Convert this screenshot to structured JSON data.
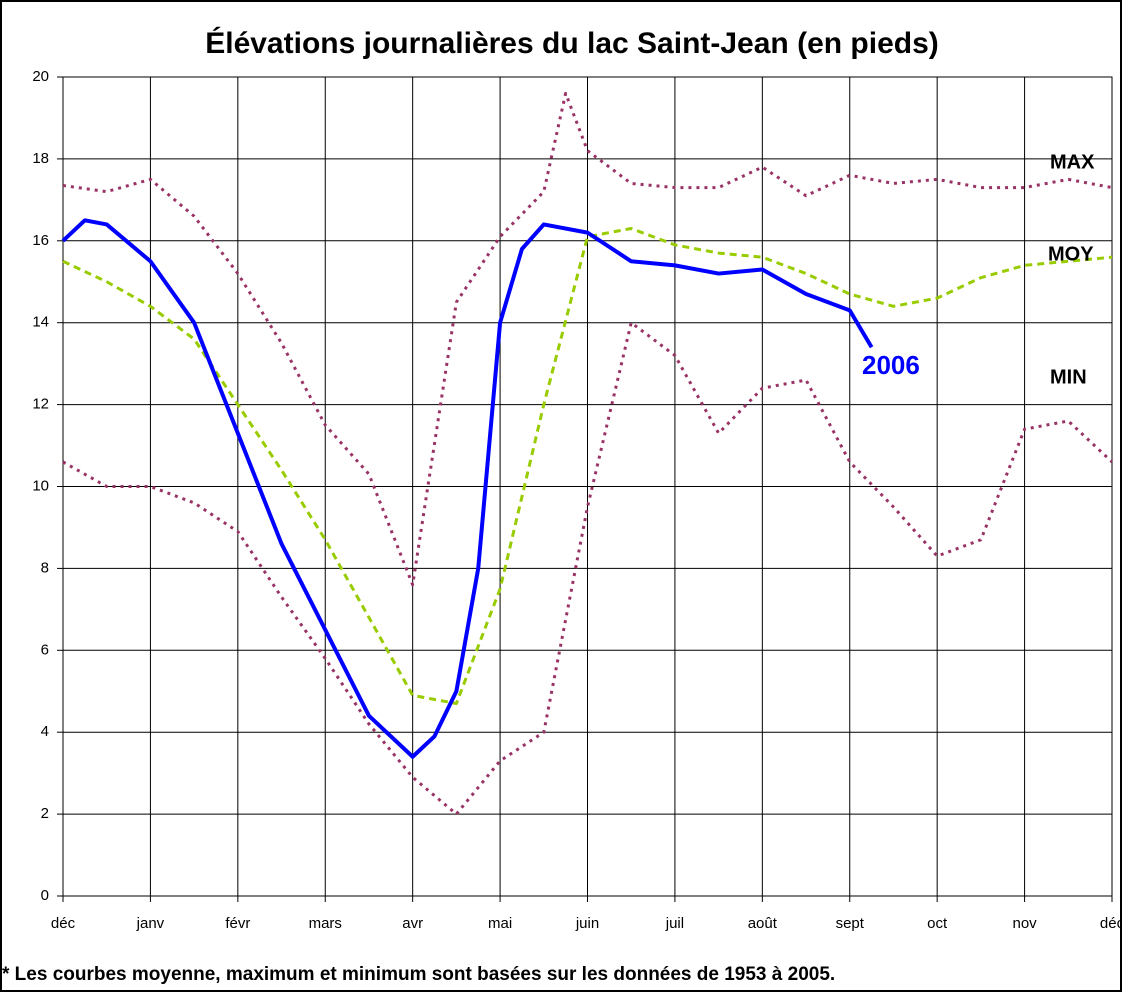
{
  "chart_data": {
    "type": "line",
    "title": "Élévations journalières du lac Saint-Jean (en pieds)",
    "footnote": "* Les courbes moyenne, maximum et minimum sont basées sur les données de 1953 à 2005.",
    "xlim": [
      0,
      12
    ],
    "xticks": [
      {
        "value": 0,
        "label": "déc"
      },
      {
        "value": 1,
        "label": "janv"
      },
      {
        "value": 2,
        "label": "févr"
      },
      {
        "value": 3,
        "label": "mars"
      },
      {
        "value": 4,
        "label": "avr"
      },
      {
        "value": 5,
        "label": "mai"
      },
      {
        "value": 6,
        "label": "juin"
      },
      {
        "value": 7,
        "label": "juil"
      },
      {
        "value": 8,
        "label": "août"
      },
      {
        "value": 9,
        "label": "sept"
      },
      {
        "value": 10,
        "label": "oct"
      },
      {
        "value": 11,
        "label": "nov"
      },
      {
        "value": 12,
        "label": "déc"
      }
    ],
    "ylim": [
      0,
      20
    ],
    "yticks": [
      0,
      2,
      4,
      6,
      8,
      10,
      12,
      14,
      16,
      18,
      20
    ],
    "grid": true,
    "series": [
      {
        "name": "MAX",
        "color": "#993366",
        "style": "dotted",
        "x": [
          0,
          0.5,
          1,
          1.5,
          2,
          2.5,
          3,
          3.5,
          4,
          4.5,
          5,
          5.5,
          5.75,
          6,
          6.5,
          7,
          7.5,
          8,
          8.5,
          9,
          9.5,
          10,
          10.5,
          11,
          11.5,
          12
        ],
        "values": [
          17.35,
          17.2,
          17.5,
          16.6,
          15.2,
          13.5,
          11.5,
          10.3,
          7.6,
          14.5,
          16.1,
          17.2,
          19.6,
          18.2,
          17.4,
          17.3,
          17.3,
          17.8,
          17.1,
          17.6,
          17.4,
          17.5,
          17.3,
          17.3,
          17.5,
          17.3
        ]
      },
      {
        "name": "MOY",
        "color": "#99cc00",
        "style": "dashed",
        "x": [
          0,
          0.5,
          1,
          1.5,
          2,
          2.5,
          3,
          3.5,
          4,
          4.5,
          5,
          5.5,
          6,
          6.5,
          7,
          7.5,
          8,
          8.5,
          9,
          9.5,
          10,
          10.5,
          11,
          11.5,
          12
        ],
        "values": [
          15.5,
          15.0,
          14.4,
          13.6,
          12.0,
          10.4,
          8.7,
          6.8,
          4.9,
          4.7,
          7.5,
          12.0,
          16.1,
          16.3,
          15.9,
          15.7,
          15.6,
          15.2,
          14.7,
          14.4,
          14.6,
          15.1,
          15.4,
          15.5,
          15.6
        ]
      },
      {
        "name": "MIN",
        "color": "#993366",
        "style": "dotted",
        "x": [
          0,
          0.5,
          1,
          1.5,
          2,
          2.5,
          3,
          3.5,
          4,
          4.5,
          5,
          5.5,
          6,
          6.5,
          7,
          7.5,
          8,
          8.5,
          9,
          9.5,
          10,
          10.5,
          11,
          11.5,
          12
        ],
        "values": [
          10.6,
          10.0,
          10.0,
          9.6,
          8.9,
          7.3,
          5.8,
          4.2,
          2.9,
          2.0,
          3.3,
          4.0,
          9.5,
          14.0,
          13.2,
          11.3,
          12.4,
          12.6,
          10.6,
          9.5,
          8.3,
          8.7,
          11.4,
          11.6,
          10.6
        ]
      },
      {
        "name": "2006",
        "color": "#0000ff",
        "style": "solid",
        "x": [
          0,
          0.25,
          0.5,
          1,
          1.5,
          2,
          2.5,
          3,
          3.5,
          4,
          4.25,
          4.5,
          4.75,
          5,
          5.25,
          5.5,
          6,
          6.5,
          7,
          7.5,
          8,
          8.5,
          9,
          9.25
        ],
        "values": [
          16.0,
          16.5,
          16.4,
          15.5,
          14.0,
          11.3,
          8.6,
          6.5,
          4.4,
          3.4,
          3.9,
          5.0,
          8.0,
          14.0,
          15.8,
          16.4,
          16.2,
          15.5,
          15.4,
          15.2,
          15.3,
          14.7,
          14.3,
          13.4
        ]
      }
    ]
  }
}
